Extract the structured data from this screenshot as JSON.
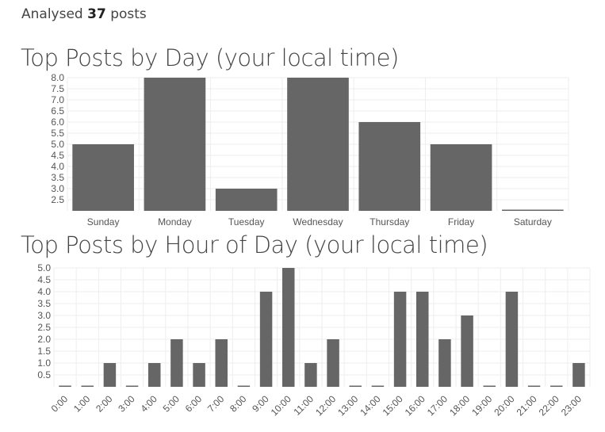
{
  "summary": {
    "prefix": "Analysed",
    "count": "37",
    "suffix": "posts"
  },
  "colors": {
    "bar": "#666666",
    "grid": "#eeeeee"
  },
  "chart_data": [
    {
      "type": "bar",
      "title": "Top Posts by Day (your local time)",
      "categories": [
        "Sunday",
        "Monday",
        "Tuesday",
        "Wednesday",
        "Thursday",
        "Friday",
        "Saturday"
      ],
      "values": [
        5,
        8,
        3,
        8,
        6,
        5,
        2
      ],
      "ylim": [
        2,
        8
      ],
      "yticks": [
        2.5,
        3.0,
        3.5,
        4.0,
        4.5,
        5.0,
        5.5,
        6.0,
        6.5,
        7.0,
        7.5,
        8.0
      ],
      "ytick_labels": [
        "2.5",
        "3.0",
        "3.5",
        "4.0",
        "4.5",
        "5.0",
        "5.5",
        "6.0",
        "6.5",
        "7.0",
        "7.5",
        "8.0"
      ],
      "xlabel": "",
      "ylabel": "",
      "grid": true
    },
    {
      "type": "bar",
      "title": "Top Posts by Hour of Day (your local time)",
      "categories": [
        "0:00",
        "1:00",
        "2:00",
        "3:00",
        "4:00",
        "5:00",
        "6:00",
        "7:00",
        "8:00",
        "9:00",
        "10:00",
        "11:00",
        "12:00",
        "13:00",
        "14:00",
        "15:00",
        "16:00",
        "17:00",
        "18:00",
        "19:00",
        "20:00",
        "21:00",
        "22:00",
        "23:00"
      ],
      "values": [
        0,
        0,
        1,
        0,
        1,
        2,
        1,
        2,
        0,
        4,
        5,
        1,
        2,
        0,
        0,
        4,
        4,
        2,
        3,
        0,
        4,
        0,
        0,
        1
      ],
      "ylim": [
        0,
        5
      ],
      "yticks": [
        0.5,
        1.0,
        1.5,
        2.0,
        2.5,
        3.0,
        3.5,
        4.0,
        4.5,
        5.0
      ],
      "ytick_labels": [
        "0.5",
        "1.0",
        "1.5",
        "2.0",
        "2.5",
        "3.0",
        "3.5",
        "4.0",
        "4.5",
        "5.0"
      ],
      "xlabel": "",
      "ylabel": "",
      "grid": true
    }
  ]
}
